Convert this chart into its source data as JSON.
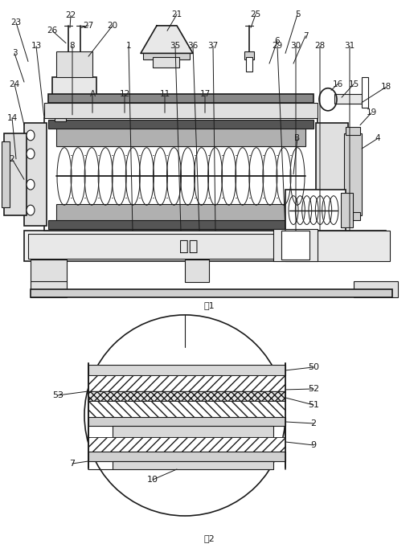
{
  "bg_color": "#ffffff",
  "line_color": "#1a1a1a",
  "fig1_caption": "图1",
  "fig2_caption": "图2",
  "water_box_text": "水箱"
}
